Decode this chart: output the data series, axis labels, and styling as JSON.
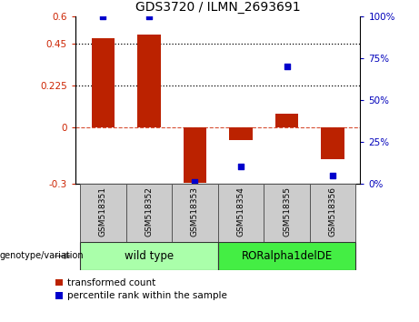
{
  "title": "GDS3720 / ILMN_2693691",
  "samples": [
    "GSM518351",
    "GSM518352",
    "GSM518353",
    "GSM518354",
    "GSM518355",
    "GSM518356"
  ],
  "bar_values": [
    0.48,
    0.5,
    -0.295,
    -0.065,
    0.075,
    -0.17
  ],
  "dot_values": [
    100,
    100,
    1,
    10,
    70,
    5
  ],
  "ylim_left": [
    -0.3,
    0.6
  ],
  "ylim_right": [
    0,
    100
  ],
  "yticks_left": [
    -0.3,
    0,
    0.225,
    0.45,
    0.6
  ],
  "yticks_right": [
    0,
    25,
    50,
    75,
    100
  ],
  "ytick_labels_left": [
    "-0.3",
    "0",
    "0.225",
    "0.45",
    "0.6"
  ],
  "ytick_labels_right": [
    "0%",
    "25%",
    "50%",
    "75%",
    "100%"
  ],
  "hlines": [
    0.225,
    0.45
  ],
  "zero_line": 0,
  "bar_color": "#BB2200",
  "dot_color": "#0000CC",
  "bar_width": 0.5,
  "legend_items": [
    "transformed count",
    "percentile rank within the sample"
  ],
  "genotype_label": "genotype/variation",
  "left_tick_color": "#CC2200",
  "right_tick_color": "#0000BB",
  "group_wt_color": "#AAFFAA",
  "group_ror_color": "#44EE44",
  "sample_bg_color": "#CCCCCC",
  "figsize": [
    4.61,
    3.54
  ],
  "dpi": 100
}
